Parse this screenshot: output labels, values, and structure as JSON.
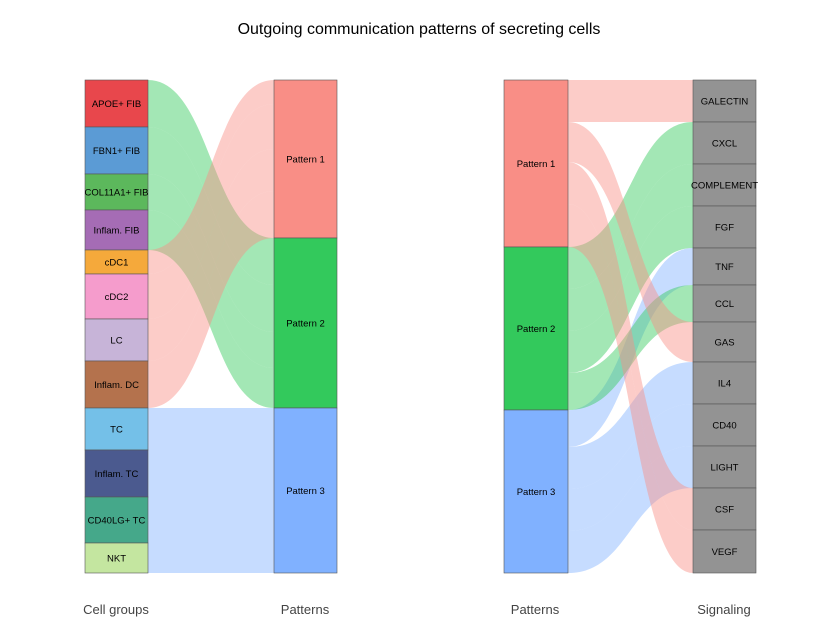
{
  "chart_data": {
    "type": "sankey",
    "title": "Outgoing communication patterns of secreting cells",
    "panels": [
      {
        "left_label": "Cell groups",
        "right_label": "Patterns",
        "left_nodes": [
          {
            "name": "APOE+ FIB",
            "color": "#e8474c"
          },
          {
            "name": "FBN1+ FIB",
            "color": "#5b9bd5"
          },
          {
            "name": "COL11A1+ FIB",
            "color": "#5cb85c"
          },
          {
            "name": "Inflam. FIB",
            "color": "#a56cb5"
          },
          {
            "name": "cDC1",
            "color": "#f5a93b"
          },
          {
            "name": "cDC2",
            "color": "#f59ccc"
          },
          {
            "name": "LC",
            "color": "#c7b4d8"
          },
          {
            "name": "Inflam. DC",
            "color": "#b4724d"
          },
          {
            "name": "TC",
            "color": "#74c0e8"
          },
          {
            "name": "Inflam. TC",
            "color": "#4b5a8f"
          },
          {
            "name": "CD40LG+ TC",
            "color": "#45a88a"
          },
          {
            "name": "NKT",
            "color": "#c4e6a0"
          }
        ],
        "right_nodes": [
          {
            "name": "Pattern 1",
            "color": "#f98e86"
          },
          {
            "name": "Pattern 2",
            "color": "#33c95c"
          },
          {
            "name": "Pattern 3",
            "color": "#80b1ff"
          }
        ],
        "flows": [
          {
            "from": "APOE+ FIB",
            "to": "Pattern 2"
          },
          {
            "from": "FBN1+ FIB",
            "to": "Pattern 2"
          },
          {
            "from": "COL11A1+ FIB",
            "to": "Pattern 2"
          },
          {
            "from": "Inflam. FIB",
            "to": "Pattern 2"
          },
          {
            "from": "cDC1",
            "to": "Pattern 1"
          },
          {
            "from": "cDC2",
            "to": "Pattern 1"
          },
          {
            "from": "LC",
            "to": "Pattern 1"
          },
          {
            "from": "Inflam. DC",
            "to": "Pattern 1"
          },
          {
            "from": "TC",
            "to": "Pattern 3"
          },
          {
            "from": "Inflam. TC",
            "to": "Pattern 3"
          },
          {
            "from": "CD40LG+ TC",
            "to": "Pattern 3"
          },
          {
            "from": "NKT",
            "to": "Pattern 3"
          }
        ]
      },
      {
        "left_label": "Patterns",
        "right_label": "Signaling",
        "left_nodes": [
          {
            "name": "Pattern 1",
            "color": "#f98e86"
          },
          {
            "name": "Pattern 2",
            "color": "#33c95c"
          },
          {
            "name": "Pattern 3",
            "color": "#80b1ff"
          }
        ],
        "right_nodes": [
          {
            "name": "GALECTIN",
            "color": "#939393"
          },
          {
            "name": "CXCL",
            "color": "#939393"
          },
          {
            "name": "COMPLEMENT",
            "color": "#939393"
          },
          {
            "name": "FGF",
            "color": "#939393"
          },
          {
            "name": "TNF",
            "color": "#939393"
          },
          {
            "name": "CCL",
            "color": "#939393"
          },
          {
            "name": "GAS",
            "color": "#939393"
          },
          {
            "name": "IL4",
            "color": "#939393"
          },
          {
            "name": "CD40",
            "color": "#939393"
          },
          {
            "name": "LIGHT",
            "color": "#939393"
          },
          {
            "name": "CSF",
            "color": "#939393"
          },
          {
            "name": "VEGF",
            "color": "#939393"
          }
        ],
        "flows": [
          {
            "from": "Pattern 1",
            "to": "GALECTIN"
          },
          {
            "from": "Pattern 1",
            "to": "GAS"
          },
          {
            "from": "Pattern 1",
            "to": "VEGF"
          },
          {
            "from": "Pattern 1",
            "to": "CSF"
          },
          {
            "from": "Pattern 2",
            "to": "CXCL"
          },
          {
            "from": "Pattern 2",
            "to": "COMPLEMENT"
          },
          {
            "from": "Pattern 2",
            "to": "FGF"
          },
          {
            "from": "Pattern 2",
            "to": "CCL"
          },
          {
            "from": "Pattern 3",
            "to": "TNF"
          },
          {
            "from": "Pattern 3",
            "to": "IL4"
          },
          {
            "from": "Pattern 3",
            "to": "CD40"
          },
          {
            "from": "Pattern 3",
            "to": "LIGHT"
          }
        ]
      }
    ]
  }
}
